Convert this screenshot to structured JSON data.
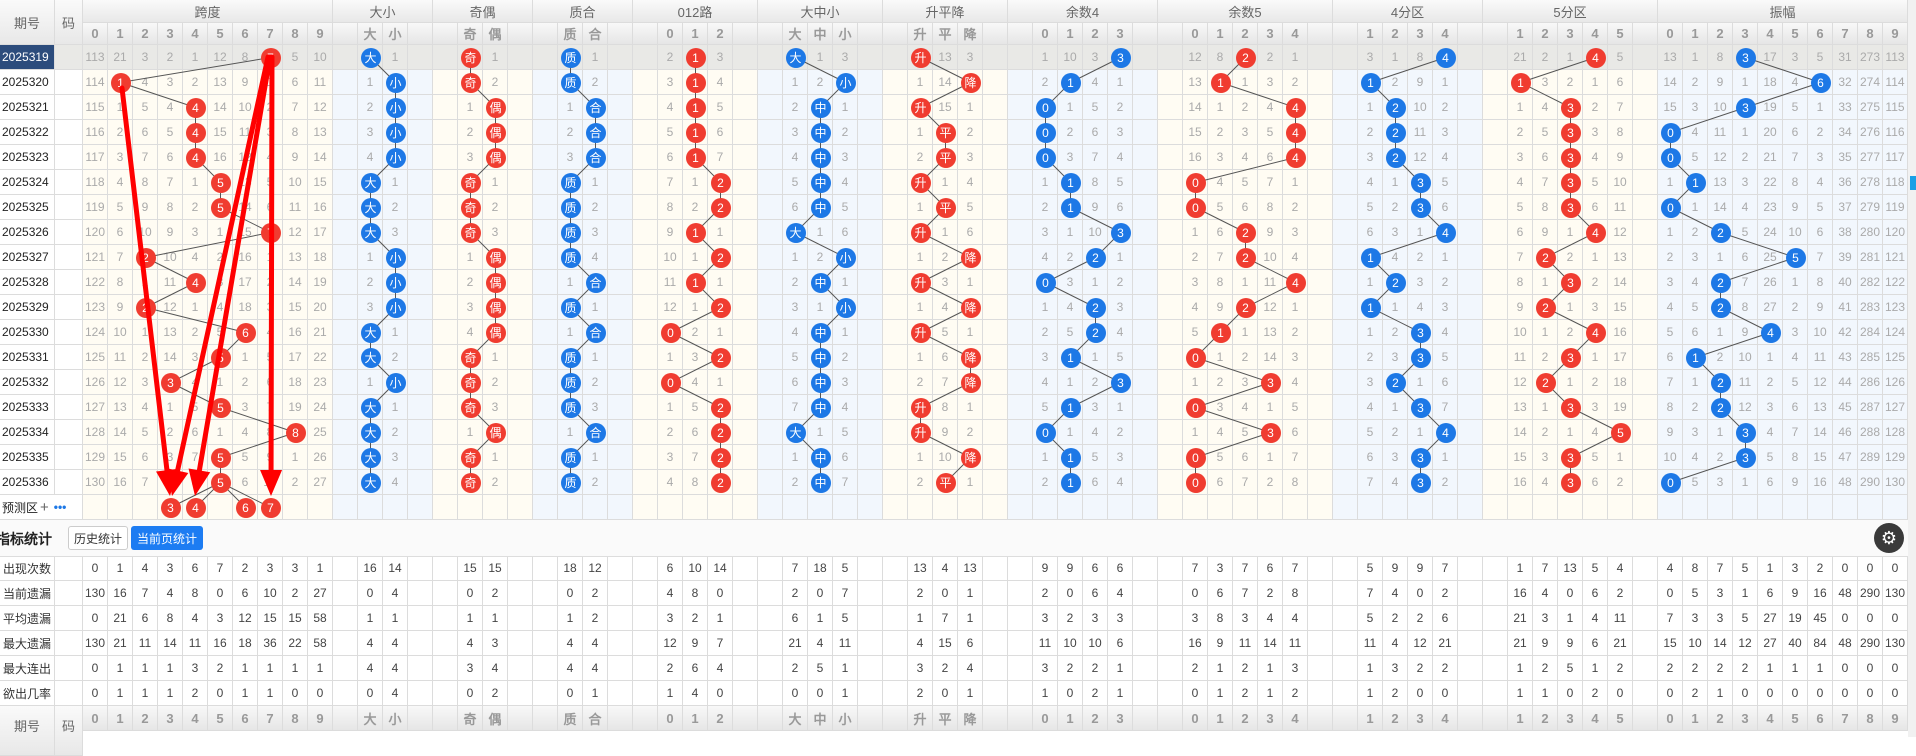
{
  "header": {
    "issue_label": "期号",
    "code_label": "码"
  },
  "groups": [
    {
      "title": "跨度",
      "cols": [
        "0",
        "1",
        "2",
        "3",
        "4",
        "5",
        "6",
        "7",
        "8",
        "9"
      ],
      "ball": "red",
      "rows": [
        "113 21 3 2 1 12 8 7 5 10",
        "114 1 4 3 2 13 9 1 6 11",
        "115 1 5 4 4 14 10 2 7 12",
        "116 2 6 5 4 15 11 3 8 13",
        "117 3 7 6 4 16 12 4 9 14",
        "118 4 8 7 1 5 13 5 10 15",
        "119 5 9 8 2 5 14 6 11 16",
        "120 6 10 9 3 1 15 7 12 17",
        "121 7 2 10 4 2 16 1 13 18",
        "122 8 1 11 4 3 17 2 14 19",
        "123 9 2 12 1 4 18 3 15 20",
        "124 10 1 13 2 5 6 4 16 21",
        "125 11 2 14 3 5 1 5 17 22",
        "126 12 3 3 4 1 2 6 18 23",
        "127 13 4 1 5 5 3 7 19 24",
        "128 14 5 2 6 1 4 8 8 25",
        "129 15 6 3 7 5 5 9 1 26",
        "130 16 7 4 8 5 6 10 2 27"
      ],
      "hits": [
        7,
        1,
        4,
        4,
        4,
        5,
        5,
        7,
        2,
        4,
        2,
        6,
        5,
        3,
        5,
        8,
        5,
        5
      ]
    },
    {
      "title": "大小",
      "cols": [
        "大",
        "小"
      ],
      "ball": "blue",
      "rows": [
        "大 1",
        "1 小",
        "2 小",
        "3 小",
        "4 小",
        "大 1",
        "大 2",
        "大 3",
        "1 小",
        "2 小",
        "3 小",
        "大 1",
        "大 2",
        "1 小",
        "大 1",
        "大 2",
        "大 3",
        "大 4"
      ],
      "hits": [
        0,
        1,
        1,
        1,
        1,
        0,
        0,
        0,
        1,
        1,
        1,
        0,
        0,
        1,
        0,
        0,
        0,
        0
      ]
    },
    {
      "title": "奇偶",
      "cols": [
        "奇",
        "偶"
      ],
      "ball": "red",
      "rows": [
        "奇 1",
        "奇 2",
        "1 偶",
        "2 偶",
        "3 偶",
        "奇 1",
        "奇 2",
        "奇 3",
        "1 偶",
        "2 偶",
        "3 偶",
        "4 偶",
        "奇 1",
        "奇 2",
        "奇 3",
        "1 偶",
        "奇 1",
        "奇 2"
      ],
      "hits": [
        0,
        0,
        1,
        1,
        1,
        0,
        0,
        0,
        1,
        1,
        1,
        1,
        0,
        0,
        0,
        1,
        0,
        0
      ]
    },
    {
      "title": "质合",
      "cols": [
        "质",
        "合"
      ],
      "ball": "blue",
      "rows": [
        "质 1",
        "质 2",
        "1 合",
        "2 合",
        "3 合",
        "质 1",
        "质 2",
        "质 3",
        "质 4",
        "1 合",
        "质 1",
        "1 合",
        "质 1",
        "质 2",
        "质 3",
        "1 合",
        "质 1",
        "质 2"
      ],
      "hits": [
        0,
        0,
        1,
        1,
        1,
        0,
        0,
        0,
        0,
        1,
        0,
        1,
        0,
        0,
        0,
        1,
        0,
        0
      ]
    },
    {
      "title": "012路",
      "cols": [
        "0",
        "1",
        "2"
      ],
      "ball": "red",
      "rows": [
        "2 1 3",
        "3 1 4",
        "4 1 5",
        "5 1 6",
        "6 1 7",
        "7 1 2",
        "8 2 2",
        "9 1 1",
        "10 1 2",
        "11 1 1",
        "12 1 2",
        "0 2 1",
        "1 3 2",
        "0 4 1",
        "1 5 2",
        "2 6 2",
        "3 7 2",
        "4 8 2"
      ],
      "hits": [
        1,
        1,
        1,
        1,
        1,
        2,
        2,
        1,
        2,
        1,
        2,
        0,
        2,
        0,
        2,
        2,
        2,
        2
      ]
    },
    {
      "title": "大中小",
      "cols": [
        "大",
        "中",
        "小"
      ],
      "ball": "blue",
      "rows": [
        "大 1 3",
        "1 2 小",
        "2 中 1",
        "3 中 2",
        "4 中 3",
        "5 中 4",
        "6 中 5",
        "大 1 6",
        "1 2 小",
        "2 中 1",
        "3 1 小",
        "4 中 1",
        "5 中 2",
        "6 中 3",
        "7 中 4",
        "大 1 5",
        "1 中 6",
        "2 中 7"
      ],
      "hits": [
        0,
        2,
        1,
        1,
        1,
        1,
        1,
        0,
        2,
        1,
        2,
        1,
        1,
        1,
        1,
        0,
        1,
        1
      ]
    },
    {
      "title": "升平降",
      "cols": [
        "升",
        "平",
        "降"
      ],
      "ball": "red",
      "rows": [
        "升 13 3",
        "1 14 降",
        "升 15 1",
        "1 平 2",
        "2 平 3",
        "升 1 4",
        "1 平 5",
        "升 1 6",
        "1 2 降",
        "升 3 1",
        "1 4 降",
        "升 5 1",
        "1 6 降",
        "2 7 降",
        "升 8 1",
        "升 9 2",
        "1 10 降",
        "2 平 1"
      ],
      "hits": [
        0,
        2,
        0,
        1,
        1,
        0,
        1,
        0,
        2,
        0,
        2,
        0,
        2,
        2,
        0,
        0,
        2,
        1
      ]
    },
    {
      "title": "余数4",
      "cols": [
        "0",
        "1",
        "2",
        "3"
      ],
      "ball": "blue",
      "rows": [
        "1 10 3 3",
        "2 1 4 1",
        "0 1 5 2",
        "0 2 6 3",
        "0 3 7 4",
        "1 1 8 5",
        "2 1 9 6",
        "3 1 10 3",
        "4 2 2 1",
        "0 3 1 2",
        "1 4 2 3",
        "2 5 2 4",
        "3 1 1 5",
        "4 1 2 3",
        "5 1 3 1",
        "0 1 4 2",
        "1 1 5 3",
        "2 1 6 4"
      ],
      "hits": [
        3,
        1,
        0,
        0,
        0,
        1,
        1,
        3,
        2,
        0,
        2,
        2,
        1,
        3,
        1,
        0,
        1,
        1
      ]
    },
    {
      "title": "余数5",
      "cols": [
        "0",
        "1",
        "2",
        "3",
        "4"
      ],
      "ball": "red",
      "rows": [
        "12 8 2 2 1",
        "13 1 1 3 2",
        "14 1 2 4 4",
        "15 2 3 5 4",
        "16 3 4 6 4",
        "0 4 5 7 1",
        "0 5 6 8 2",
        "1 6 2 9 3",
        "2 7 2 10 4",
        "3 8 1 11 4",
        "4 9 2 12 1",
        "5 1 1 13 2",
        "0 1 2 14 3",
        "1 2 3 3 4",
        "0 3 4 1 5",
        "1 4 5 3 6",
        "0 5 6 1 7",
        "0 6 7 2 8"
      ],
      "hits": [
        2,
        1,
        4,
        4,
        4,
        0,
        0,
        2,
        2,
        4,
        2,
        1,
        0,
        3,
        0,
        3,
        0,
        0
      ]
    },
    {
      "title": "4分区",
      "cols": [
        "1",
        "2",
        "3",
        "4"
      ],
      "ball": "blue",
      "rows": [
        "3 1 8 4",
        "1 2 9 1",
        "1 2 10 2",
        "2 2 11 3",
        "3 2 12 4",
        "4 1 3 5",
        "5 2 3 6",
        "6 3 1 4",
        "1 4 2 1",
        "1 2 3 2",
        "1 1 4 3",
        "1 2 3 4",
        "2 3 3 5",
        "3 2 1 6",
        "4 1 3 7",
        "5 2 1 4",
        "6 3 3 1",
        "7 4 3 2"
      ],
      "hits": [
        3,
        0,
        1,
        1,
        1,
        2,
        2,
        3,
        0,
        1,
        0,
        2,
        2,
        1,
        2,
        3,
        2,
        2
      ]
    },
    {
      "title": "5分区",
      "cols": [
        "1",
        "2",
        "3",
        "4",
        "5"
      ],
      "ball": "red",
      "rows": [
        "21 2 1 4 5",
        "1 3 2 1 6",
        "1 4 3 2 7",
        "2 5 3 3 8",
        "3 6 3 4 9",
        "4 7 3 5 10",
        "5 8 3 6 11",
        "6 9 1 4 12",
        "7 2 2 1 13",
        "8 1 3 2 14",
        "9 2 1 3 15",
        "10 1 2 4 16",
        "11 2 3 1 17",
        "12 2 1 2 18",
        "13 1 3 3 19",
        "14 2 1 4 5",
        "15 3 3 5 1",
        "16 4 3 6 2"
      ],
      "hits": [
        3,
        0,
        2,
        2,
        2,
        2,
        2,
        3,
        1,
        2,
        1,
        3,
        2,
        1,
        2,
        4,
        2,
        2
      ]
    },
    {
      "title": "振幅",
      "cols": [
        "0",
        "1",
        "2",
        "3",
        "4",
        "5",
        "6",
        "7",
        "8",
        "9"
      ],
      "ball": "blue",
      "rows": [
        "13 1 8 3 17 3 5 31 273 113",
        "14 2 9 1 18 4 6 32 274 114",
        "15 3 10 3 19 5 1 33 275 115",
        "0 4 11 1 20 6 2 34 276 116",
        "0 5 12 2 21 7 3 35 277 117",
        "1 1 13 3 22 8 4 36 278 118",
        "0 1 14 4 23 9 5 37 279 119",
        "1 2 2 5 24 10 6 38 280 120",
        "2 3 1 6 25 5 7 39 281 121",
        "3 4 2 7 26 1 8 40 282 122",
        "4 5 2 8 27 2 9 41 283 123",
        "5 6 1 9 4 3 10 42 284 124",
        "6 1 2 10 1 4 11 43 285 125",
        "7 1 2 11 2 5 12 44 286 126",
        "8 2 2 12 3 6 13 45 287 127",
        "9 3 1 3 4 7 14 46 288 128",
        "10 4 2 3 5 8 15 47 289 129",
        "0 5 3 1 6 9 16 48 290 130"
      ],
      "hits": [
        3,
        6,
        3,
        0,
        0,
        1,
        0,
        2,
        5,
        2,
        2,
        4,
        1,
        2,
        2,
        3,
        3,
        0
      ]
    }
  ],
  "issues": [
    "2025319",
    "2025320",
    "2025321",
    "2025322",
    "2025323",
    "2025324",
    "2025325",
    "2025326",
    "2025327",
    "2025328",
    "2025329",
    "2025330",
    "2025331",
    "2025332",
    "2025333",
    "2025334",
    "2025335",
    "2025336"
  ],
  "selected_issue": "2025319",
  "prediction": {
    "label": "预测区",
    "plus": "+",
    "more": "•••",
    "span_balls": [
      "3",
      "4",
      "6",
      "7"
    ]
  },
  "stats": {
    "title": "指标统计",
    "history_button": "历史统计",
    "current_button": "当前页统计",
    "active_button": "当前页统计",
    "rows": [
      {
        "label": "出现次数",
        "values": [
          "0 1 4 3 6 7 2 3 3 1",
          "16 14",
          "15 15",
          "18 12",
          "6 10 14",
          "7 18 5",
          "13 4 13",
          "9 9 6 6",
          "7 3 7 6 7",
          "5 9 9 7",
          "1 7 13 5 4",
          "4 8 7 5 1 3 2 0 0 0"
        ]
      },
      {
        "label": "当前遗漏",
        "values": [
          "130 16 7 4 8 0 6 10 2 27",
          "0 4",
          "0 2",
          "0 2",
          "4 8 0",
          "2 0 7",
          "2 0 1",
          "2 0 6 4",
          "0 6 7 2 8",
          "7 4 0 2",
          "16 4 0 6 2",
          "0 5 3 1 6 9 16 48 290 130"
        ]
      },
      {
        "label": "平均遗漏",
        "values": [
          "0 21 6 8 4 3 12 15 15 58",
          "1 1",
          "1 1",
          "1 2",
          "3 2 1",
          "6 1 5",
          "1 7 1",
          "3 2 3 3",
          "3 8 3 4 4",
          "5 2 2 6",
          "21 3 1 4 11",
          "7 3 3 5 27 19 45 0 0 0"
        ]
      },
      {
        "label": "最大遗漏",
        "values": [
          "130 21 11 14 11 16 18 36 22 58",
          "4 4",
          "4 3",
          "4 4",
          "12 9 7",
          "21 4 11",
          "4 15 6",
          "11 10 10 6",
          "16 9 11 14 11",
          "11 4 12 21",
          "21 9 9 6 21",
          "15 10 14 12 27 40 84 48 290 130"
        ]
      },
      {
        "label": "最大连出",
        "values": [
          "0 1 1 1 3 2 1 1 1 1",
          "4 4",
          "3 4",
          "4 4",
          "2 6 4",
          "2 5 1",
          "3 2 4",
          "3 2 2 1",
          "2 1 2 1 3",
          "1 3 2 2",
          "1 2 5 1 2",
          "2 2 2 2 1 1 1 0 0 0"
        ]
      },
      {
        "label": "欲出几率",
        "values": [
          "0 1 1 1 2 0 1 1 0 0",
          "0 4",
          "0 2",
          "0 1",
          "1 4 0",
          "0 0 1",
          "2 0 1",
          "1 0 2 1",
          "0 1 2 1 2",
          "1 2 0 0",
          "1 1 0 2 0",
          "0 2 1 0 0 0 0 0 0 0"
        ]
      }
    ]
  },
  "colors": {
    "red_ball": "#f03c30",
    "blue_ball": "#1d78e6",
    "selected_issue_bg": "#2c4c7c",
    "active_button": "#1d7cf2",
    "annotation_arrow": "#ff0000"
  },
  "icons": {
    "settings": "gear-icon",
    "prediction_add": "plus-icon",
    "prediction_more": "more-icon"
  }
}
